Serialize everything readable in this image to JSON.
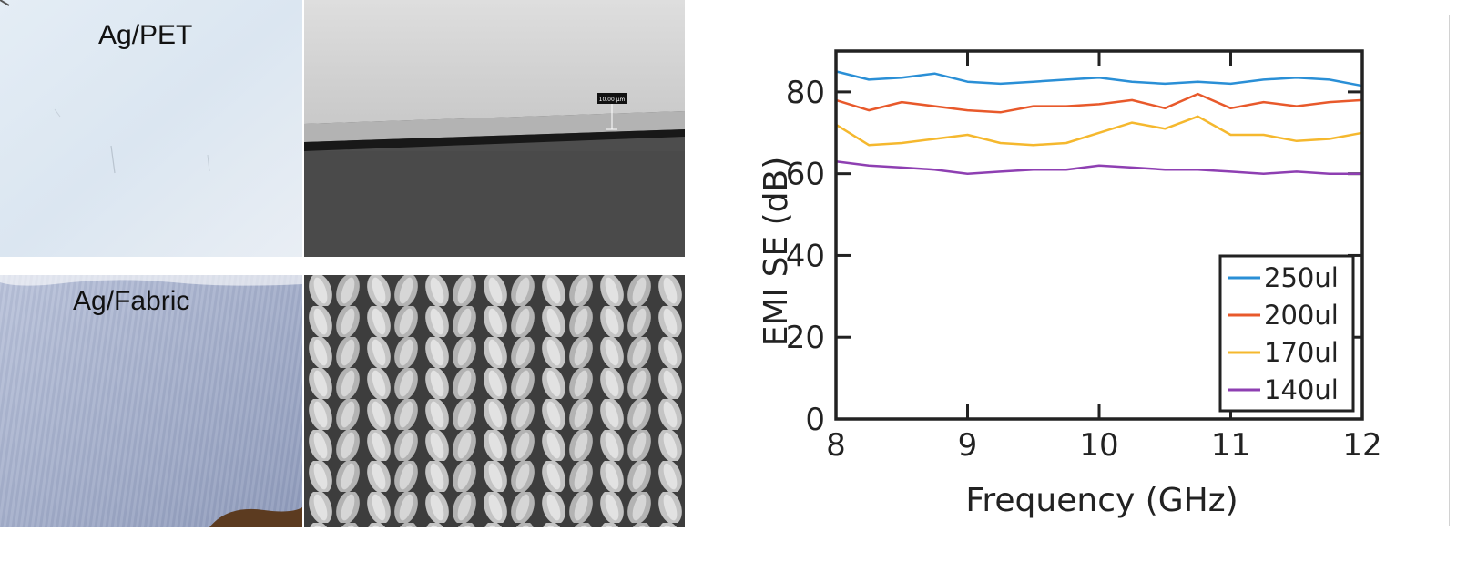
{
  "panels": {
    "pet_label": "Ag/PET",
    "fabric_label": "Ag/Fabric",
    "scale_bar_label": "10.00 μm"
  },
  "colors": {
    "250ul": "#2a8fd6",
    "200ul": "#e8592b",
    "170ul": "#f5b82e",
    "140ul": "#8e3fb2",
    "axis": "#222222"
  },
  "chart_data": {
    "type": "line",
    "title": "",
    "xlabel": "Frequency (GHz)",
    "ylabel": "EMI SE (dB)",
    "xlim": [
      8,
      12
    ],
    "ylim": [
      0,
      90
    ],
    "xticks": [
      8,
      9,
      10,
      11,
      12
    ],
    "yticks": [
      0,
      20,
      40,
      60,
      80
    ],
    "grid": false,
    "legend_position": "bottom-right",
    "x": [
      8.0,
      8.25,
      8.5,
      8.75,
      9.0,
      9.25,
      9.5,
      9.75,
      10.0,
      10.25,
      10.5,
      10.75,
      11.0,
      11.25,
      11.5,
      11.75,
      12.0
    ],
    "series": [
      {
        "name": "250ul",
        "color_key": "250ul",
        "values": [
          85.0,
          83.0,
          83.5,
          84.5,
          82.5,
          82.0,
          82.5,
          83.0,
          83.5,
          82.5,
          82.0,
          82.5,
          82.0,
          83.0,
          83.5,
          83.0,
          81.5
        ]
      },
      {
        "name": "200ul",
        "color_key": "200ul",
        "values": [
          78.0,
          75.5,
          77.5,
          76.5,
          75.5,
          75.0,
          76.5,
          76.5,
          77.0,
          78.0,
          76.0,
          79.5,
          76.0,
          77.5,
          76.5,
          77.5,
          78.0
        ]
      },
      {
        "name": "170ul",
        "color_key": "170ul",
        "values": [
          72.0,
          67.0,
          67.5,
          68.5,
          69.5,
          67.5,
          67.0,
          67.5,
          70.0,
          72.5,
          71.0,
          74.0,
          69.5,
          69.5,
          68.0,
          68.5,
          70.0
        ]
      },
      {
        "name": "140ul",
        "color_key": "140ul",
        "values": [
          63.0,
          62.0,
          61.5,
          61.0,
          60.0,
          60.5,
          61.0,
          61.0,
          62.0,
          61.5,
          61.0,
          61.0,
          60.5,
          60.0,
          60.5,
          60.0,
          60.0
        ]
      }
    ]
  }
}
